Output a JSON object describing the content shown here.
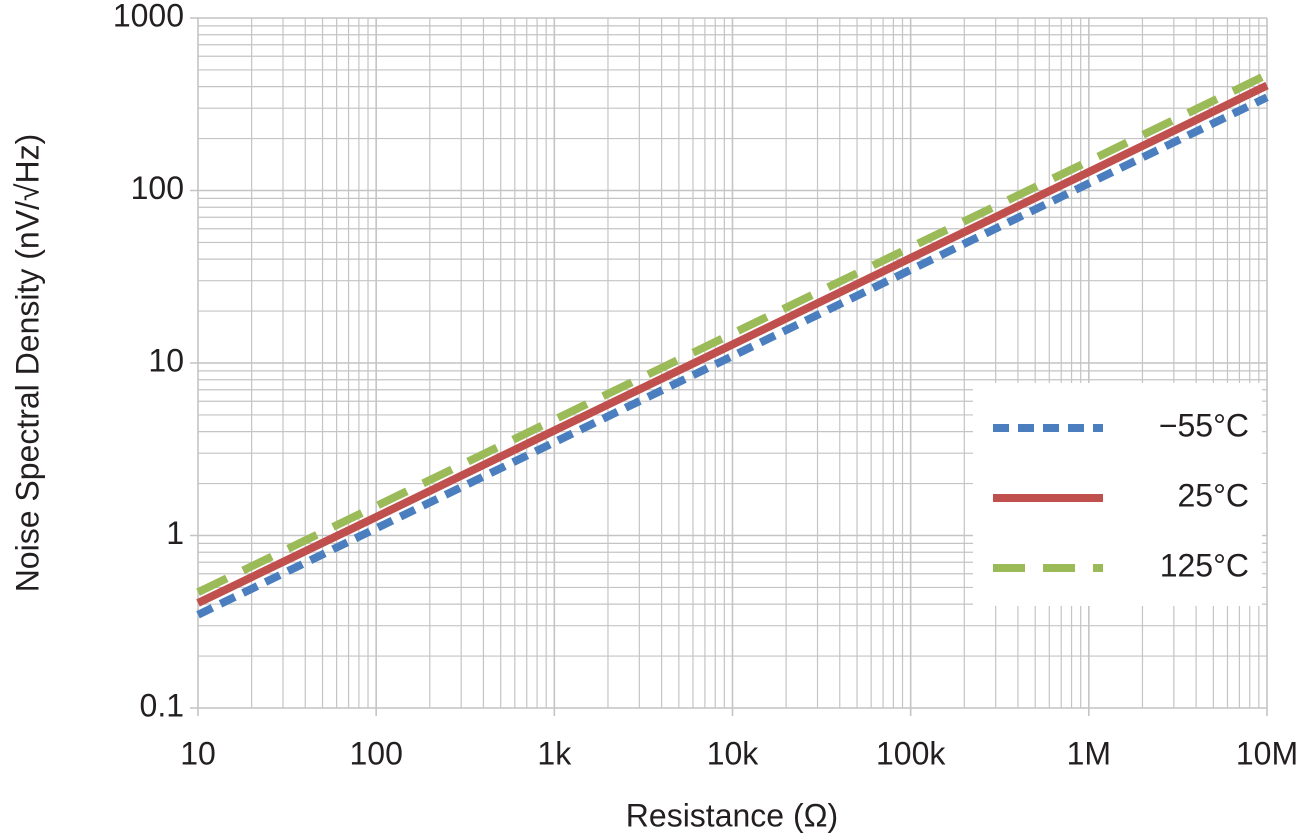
{
  "chart_data": {
    "type": "line",
    "x_label": "Resistance (Ω)",
    "y_label": "Noise Spectral Density (nV/√Hz)",
    "x": [
      10,
      100,
      1000,
      10000,
      100000,
      1000000,
      10000000
    ],
    "series": [
      {
        "name": "−55°C",
        "color": "#4a7ebf",
        "dash": "dashed",
        "values": [
          0.347,
          1.1,
          3.47,
          10.97,
          34.7,
          110,
          347
        ]
      },
      {
        "name": "25°C",
        "color": "#c0504d",
        "dash": "solid",
        "values": [
          0.406,
          1.28,
          4.06,
          12.8,
          40.6,
          128,
          406
        ]
      },
      {
        "name": "125°C",
        "color": "#9bbb59",
        "dash": "long-dashed",
        "values": [
          0.469,
          1.48,
          4.69,
          14.8,
          46.9,
          148,
          469
        ]
      }
    ],
    "xlim": [
      10,
      10000000
    ],
    "ylim": [
      0.1,
      1000
    ],
    "xticks": [
      10,
      100,
      {
        "value": 1000,
        "label": "1k"
      },
      {
        "value": 10000,
        "label": "10k"
      },
      {
        "value": 100000,
        "label": "100k"
      },
      {
        "value": 1000000,
        "label": "1M"
      },
      {
        "value": 10000000,
        "label": "10M"
      }
    ],
    "yticks": [
      0.1,
      1,
      10,
      100,
      1000
    ],
    "x_log": true,
    "y_log": true,
    "grid": true,
    "minor_grid": true,
    "legend": "lower right"
  }
}
